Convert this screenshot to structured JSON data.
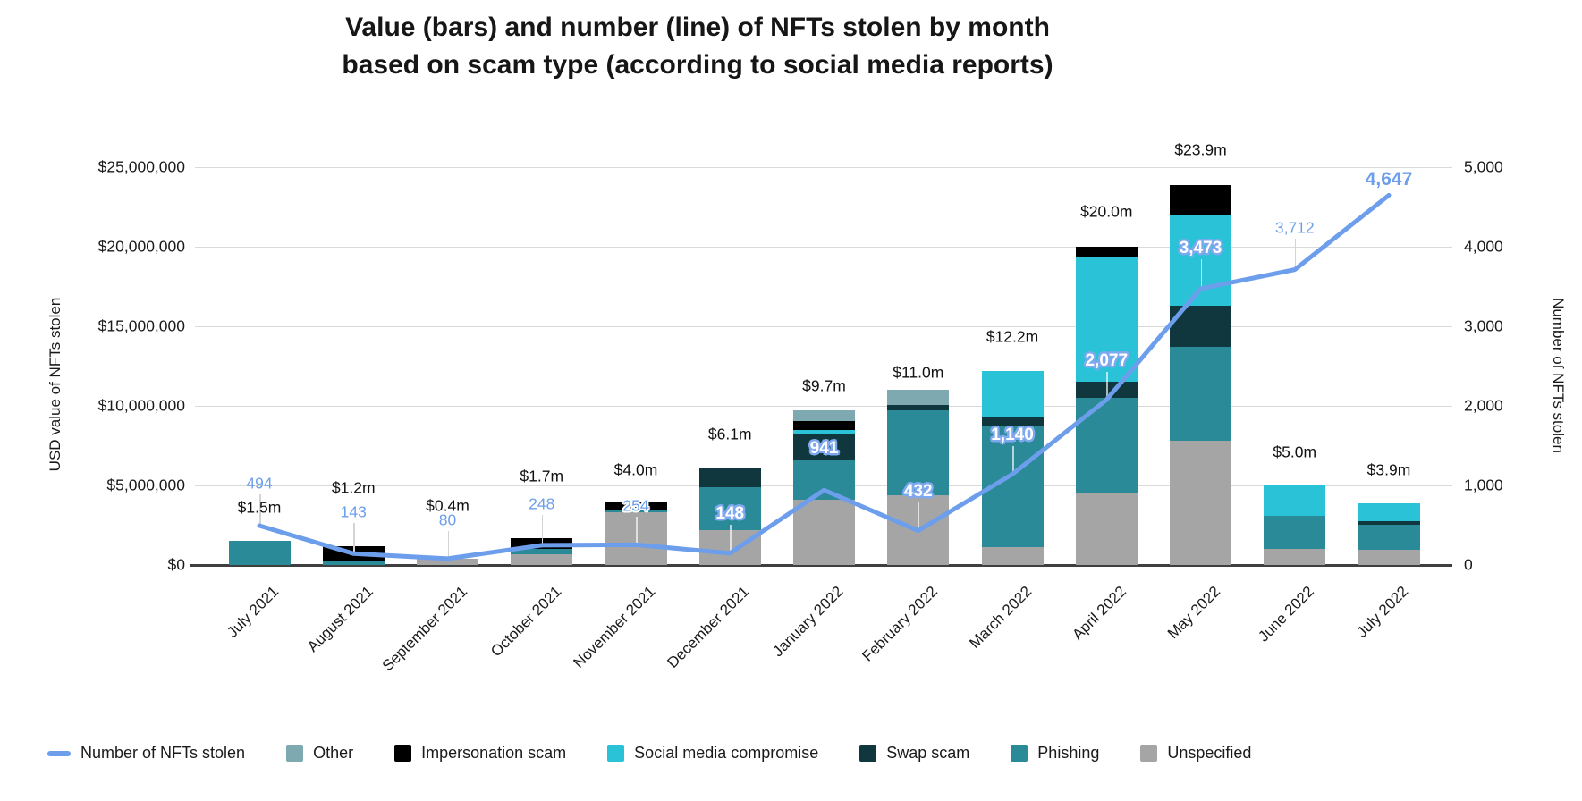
{
  "title": {
    "line1": "Value (bars) and number (line) of NFTs stolen by month",
    "line2": "based on scam type (according to social media reports)"
  },
  "y_axis_left": {
    "title": "USD value of NFTs stolen",
    "tick_labels": [
      "$25,000,000",
      "$20,000,000",
      "$15,000,000",
      "$10,000,000",
      "$5,000,000",
      "$0"
    ],
    "tick_values_musd": [
      25,
      20,
      15,
      10,
      5,
      0
    ]
  },
  "y_axis_right": {
    "title": "Number of NFTs stolen",
    "tick_labels": [
      "5,000",
      "4,000",
      "3,000",
      "2,000",
      "1,000",
      "0"
    ],
    "tick_values": [
      5000,
      4000,
      3000,
      2000,
      1000,
      0
    ]
  },
  "colors": {
    "line": "#6d9eeb",
    "grid": "#dadada",
    "baseline": "#3f3f3f",
    "text": "#1a1a1a",
    "unspecified": "#a5a5a5",
    "phishing": "#2a8a98",
    "swap_scam": "#11373e",
    "social_media_compromise": "#29c2d6",
    "impersonation_scam": "#000000",
    "other": "#7ea9b1"
  },
  "legend": [
    {
      "label": "Number of NFTs stolen",
      "type": "line",
      "color": "#6d9eeb"
    },
    {
      "label": "Other",
      "type": "box",
      "color": "#7ea9b1"
    },
    {
      "label": "Impersonation scam",
      "type": "box",
      "color": "#000000"
    },
    {
      "label": "Social media compromise",
      "type": "box",
      "color": "#29c2d6"
    },
    {
      "label": "Swap scam",
      "type": "box",
      "color": "#11373e"
    },
    {
      "label": "Phishing",
      "type": "box",
      "color": "#2a8a98"
    },
    {
      "label": "Unspecified",
      "type": "box",
      "color": "#a5a5a5"
    }
  ],
  "chart_data": {
    "type": "combo: stacked bar (left axis) + line (right axis)",
    "categories": [
      "July 2021",
      "August 2021",
      "September 2021",
      "October 2021",
      "November 2021",
      "December 2021",
      "January 2022",
      "February 2022",
      "March 2022",
      "April 2022",
      "May 2022",
      "June 2022",
      "July 2022"
    ],
    "axis_left": {
      "label": "USD value of NFTs stolen",
      "min": 0,
      "max": 25000000,
      "tick_step": 5000000
    },
    "axis_right": {
      "label": "Number of NFTs stolen",
      "min": 0,
      "max": 5000,
      "tick_step": 1000
    },
    "grid": true,
    "legend_position": "bottom",
    "bar_total_labels": [
      "$1.5m",
      "$1.2m",
      "$0.4m",
      "$1.7m",
      "$4.0m",
      "$6.1m",
      "$9.7m",
      "$11.0m",
      "$12.2m",
      "$20.0m",
      "$23.9m",
      "$5.0m",
      "$3.9m"
    ],
    "bar_totals_musd": [
      1.5,
      1.2,
      0.4,
      1.7,
      4.0,
      6.1,
      9.7,
      11.0,
      12.2,
      20.0,
      23.9,
      5.0,
      3.9
    ],
    "bar_unit": "USD millions, estimated segment breakdown read from bar heights",
    "series": [
      {
        "name": "Unspecified",
        "color": "#a5a5a5",
        "values_musd": [
          0,
          0,
          0.4,
          0.7,
          3.3,
          2.2,
          4.1,
          4.4,
          1.1,
          4.5,
          7.8,
          1.0,
          0.95
        ]
      },
      {
        "name": "Phishing",
        "color": "#2a8a98",
        "values_musd": [
          1.5,
          0.2,
          0,
          0.3,
          0.2,
          2.7,
          2.5,
          5.3,
          7.6,
          6.0,
          5.9,
          2.1,
          1.6
        ]
      },
      {
        "name": "Swap scam",
        "color": "#11373e",
        "values_musd": [
          0,
          0,
          0,
          0,
          0,
          1.2,
          1.6,
          0.35,
          0.55,
          1.0,
          2.6,
          0,
          0.2
        ]
      },
      {
        "name": "Social media compromise",
        "color": "#29c2d6",
        "values_musd": [
          0,
          0,
          0,
          0,
          0,
          0,
          0.3,
          0,
          2.95,
          7.9,
          5.75,
          1.9,
          1.15
        ]
      },
      {
        "name": "Impersonation scam",
        "color": "#000000",
        "values_musd": [
          0,
          1.0,
          0,
          0.7,
          0.5,
          0,
          0.55,
          0,
          0,
          0.6,
          1.85,
          0,
          0
        ]
      },
      {
        "name": "Other",
        "color": "#7ea9b1",
        "values_musd": [
          0,
          0,
          0,
          0,
          0,
          0,
          0.65,
          0.95,
          0,
          0,
          0,
          0,
          0
        ]
      }
    ],
    "line_series": {
      "name": "Number of NFTs stolen",
      "color": "#6d9eeb",
      "values": [
        494,
        143,
        80,
        248,
        254,
        148,
        941,
        432,
        1140,
        2077,
        3473,
        3712,
        4647
      ],
      "labels": [
        "494",
        "143",
        "80",
        "248",
        "254",
        "148",
        "941",
        "432",
        "1,140",
        "2,077",
        "3,473",
        "3,712",
        "4,647"
      ]
    }
  }
}
